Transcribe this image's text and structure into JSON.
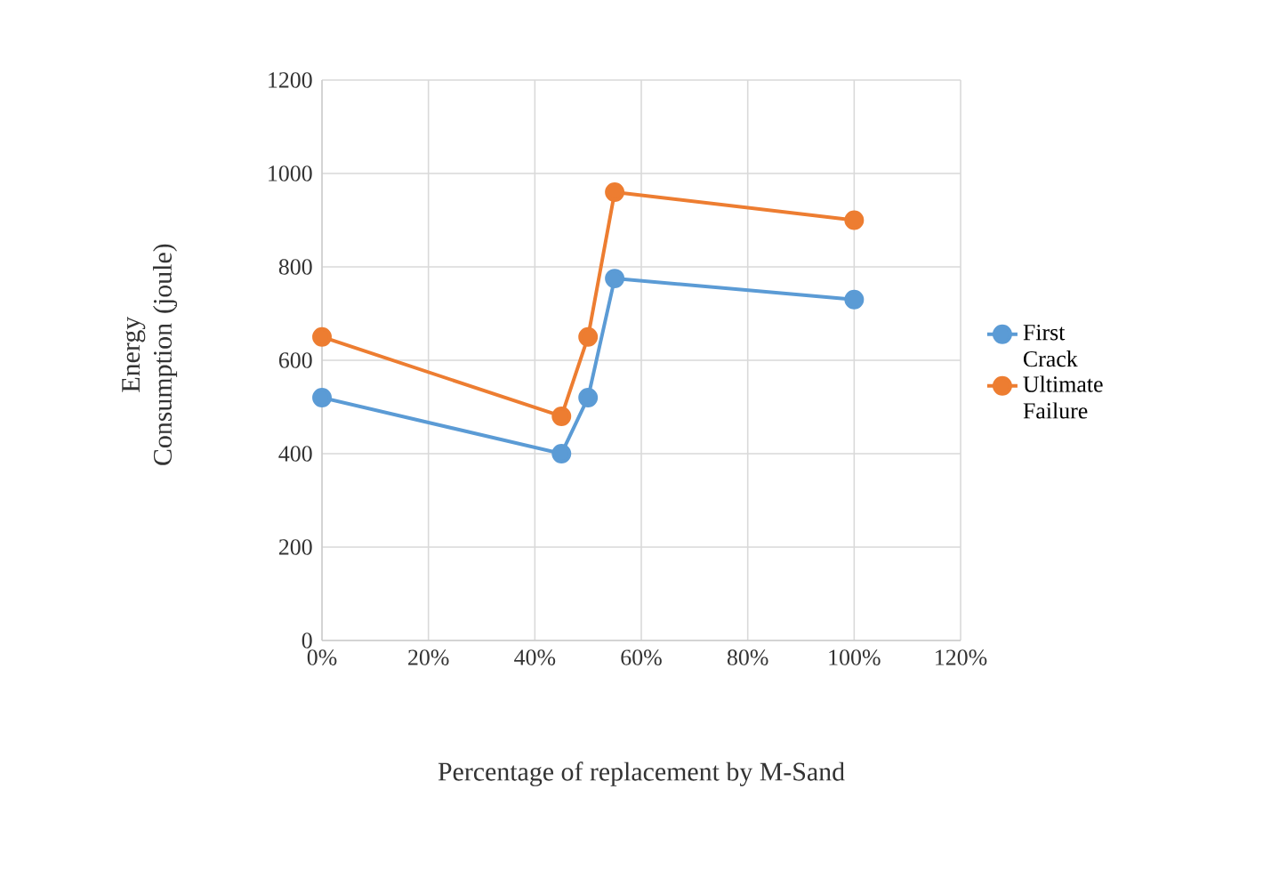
{
  "chart_data": {
    "type": "line",
    "xlabel": "Percentage of replacement by M-Sand",
    "ylabel": "Energy Consumption (joule)",
    "x": [
      0,
      45,
      50,
      55,
      100
    ],
    "series": [
      {
        "name": "First Crack",
        "color": "#5b9bd5",
        "values": [
          520,
          400,
          520,
          775,
          730
        ]
      },
      {
        "name": "Ultimate Failure",
        "color": "#ed7d31",
        "values": [
          650,
          480,
          650,
          960,
          900
        ]
      }
    ],
    "xlim": [
      0,
      120
    ],
    "xticks": [
      {
        "value": 0,
        "label": "0%"
      },
      {
        "value": 20,
        "label": "20%"
      },
      {
        "value": 40,
        "label": "40%"
      },
      {
        "value": 60,
        "label": "60%"
      },
      {
        "value": 80,
        "label": "80%"
      },
      {
        "value": 100,
        "label": "100%"
      },
      {
        "value": 120,
        "label": "120%"
      }
    ],
    "ylim": [
      0,
      1200
    ],
    "yticks": [
      0,
      200,
      400,
      600,
      800,
      1000,
      1200
    ],
    "grid": true,
    "legend": "right",
    "marker": "circle",
    "line_style": "solid"
  }
}
